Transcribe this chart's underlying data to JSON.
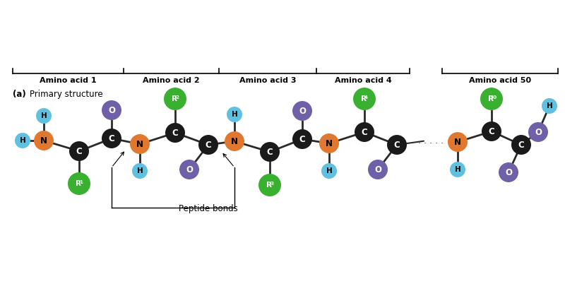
{
  "background_color": "#ffffff",
  "atom_colors": {
    "C": "#1a1a1a",
    "N": "#e07830",
    "O": "#7060a8",
    "H": "#60c0e0",
    "R": "#3ab030"
  },
  "amino_acid_labels": [
    "Amino acid 1",
    "Amino acid 2",
    "Amino acid 3",
    "Amino acid 4",
    "Amino acid 50"
  ],
  "peptide_bonds_label": "Peptide bonds",
  "subtitle_label": "(a)",
  "subtitle_main": "Primary structure"
}
